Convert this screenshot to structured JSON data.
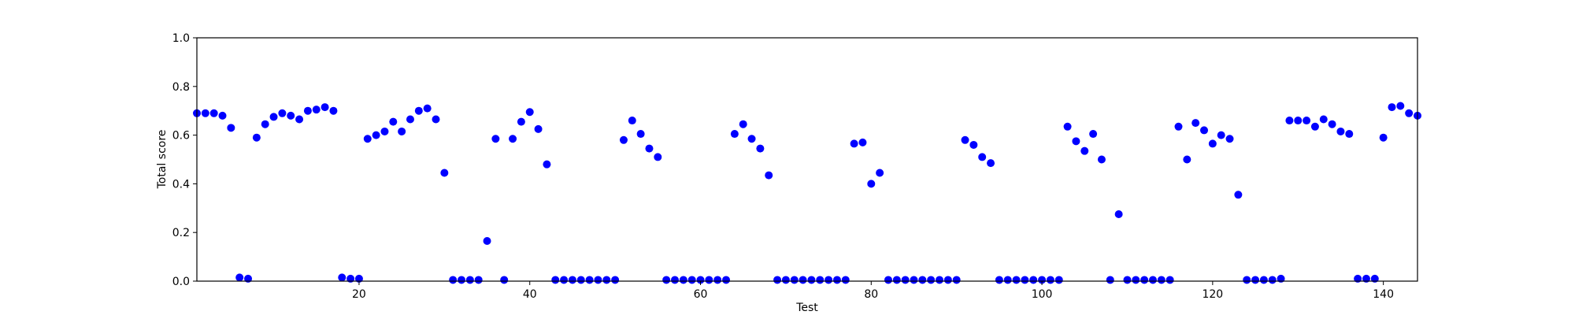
{
  "chart_data": {
    "type": "scatter",
    "xlabel": "Test",
    "ylabel": "Total score",
    "xlim": [
      1,
      144
    ],
    "ylim": [
      0.0,
      1.0
    ],
    "xticks": [
      20,
      40,
      60,
      80,
      100,
      120,
      140
    ],
    "xtick_labels": [
      "20",
      "40",
      "60",
      "80",
      "100",
      "120",
      "140"
    ],
    "yticks": [
      0.0,
      0.2,
      0.4,
      0.6,
      0.8,
      1.0
    ],
    "ytick_labels": [
      "0.0",
      "0.2",
      "0.4",
      "0.6",
      "0.8",
      "1.0"
    ],
    "grid": false,
    "marker_color": "#0000ff",
    "x": [
      1,
      2,
      3,
      4,
      5,
      6,
      7,
      8,
      9,
      10,
      11,
      12,
      13,
      14,
      15,
      16,
      17,
      18,
      19,
      20,
      21,
      22,
      23,
      24,
      25,
      26,
      27,
      28,
      29,
      30,
      31,
      32,
      33,
      34,
      35,
      36,
      37,
      38,
      39,
      40,
      41,
      42,
      43,
      44,
      45,
      46,
      47,
      48,
      49,
      50,
      51,
      52,
      53,
      54,
      55,
      56,
      57,
      58,
      59,
      60,
      61,
      62,
      63,
      64,
      65,
      66,
      67,
      68,
      69,
      70,
      71,
      72,
      73,
      74,
      75,
      76,
      77,
      78,
      79,
      80,
      81,
      82,
      83,
      84,
      85,
      86,
      87,
      88,
      89,
      90,
      91,
      92,
      93,
      94,
      95,
      96,
      97,
      98,
      99,
      100,
      101,
      102,
      103,
      104,
      105,
      106,
      107,
      108,
      109,
      110,
      111,
      112,
      113,
      114,
      115,
      116,
      117,
      118,
      119,
      120,
      121,
      122,
      123,
      124,
      125,
      126,
      127,
      128,
      129,
      130,
      131,
      132,
      133,
      134,
      135,
      136,
      137,
      138,
      139,
      140,
      141,
      142,
      143,
      144
    ],
    "y": [
      0.69,
      0.69,
      0.69,
      0.68,
      0.63,
      0.015,
      0.01,
      0.59,
      0.645,
      0.675,
      0.69,
      0.68,
      0.665,
      0.7,
      0.705,
      0.715,
      0.7,
      0.015,
      0.01,
      0.01,
      0.585,
      0.6,
      0.615,
      0.655,
      0.615,
      0.665,
      0.7,
      0.71,
      0.665,
      0.445,
      0.005,
      0.005,
      0.005,
      0.005,
      0.165,
      0.585,
      0.005,
      0.585,
      0.655,
      0.695,
      0.625,
      0.48,
      0.005,
      0.005,
      0.005,
      0.005,
      0.005,
      0.005,
      0.005,
      0.005,
      0.58,
      0.66,
      0.605,
      0.545,
      0.51,
      0.005,
      0.005,
      0.005,
      0.005,
      0.005,
      0.005,
      0.005,
      0.005,
      0.605,
      0.645,
      0.585,
      0.545,
      0.435,
      0.005,
      0.005,
      0.005,
      0.005,
      0.005,
      0.005,
      0.005,
      0.005,
      0.005,
      0.565,
      0.57,
      0.4,
      0.445,
      0.005,
      0.005,
      0.005,
      0.005,
      0.005,
      0.005,
      0.005,
      0.005,
      0.005,
      0.58,
      0.56,
      0.51,
      0.485,
      0.005,
      0.005,
      0.005,
      0.005,
      0.005,
      0.005,
      0.005,
      0.005,
      0.635,
      0.575,
      0.535,
      0.605,
      0.5,
      0.005,
      0.275,
      0.005,
      0.005,
      0.005,
      0.005,
      0.005,
      0.005,
      0.635,
      0.5,
      0.65,
      0.62,
      0.565,
      0.6,
      0.585,
      0.355,
      0.005,
      0.005,
      0.005,
      0.005,
      0.01,
      0.66,
      0.66,
      0.66,
      0.635,
      0.665,
      0.645,
      0.615,
      0.605,
      0.01,
      0.01,
      0.01,
      0.59,
      0.715,
      0.72,
      0.69,
      0.68
    ]
  }
}
